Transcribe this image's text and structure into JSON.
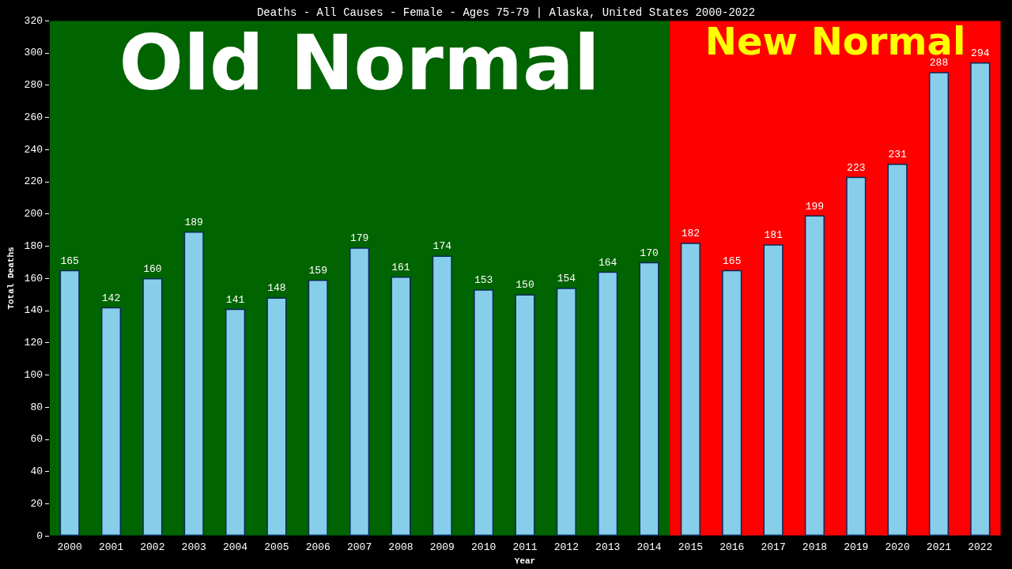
{
  "chart_data": {
    "type": "bar",
    "title": "Deaths - All Causes - Female - Ages 75-79 | Alaska, United States 2000-2022",
    "xlabel": "Year",
    "ylabel": "Total Deaths",
    "categories": [
      "2000",
      "2001",
      "2002",
      "2003",
      "2004",
      "2005",
      "2006",
      "2007",
      "2008",
      "2009",
      "2010",
      "2011",
      "2012",
      "2013",
      "2014",
      "2015",
      "2016",
      "2017",
      "2018",
      "2019",
      "2020",
      "2021",
      "2022"
    ],
    "values": [
      165,
      142,
      160,
      189,
      141,
      148,
      159,
      179,
      161,
      174,
      153,
      150,
      154,
      164,
      170,
      182,
      165,
      181,
      199,
      223,
      231,
      288,
      294
    ],
    "color": "#87ceeb",
    "ylim": [
      0,
      320
    ],
    "yticks": [
      0,
      20,
      40,
      60,
      80,
      100,
      120,
      140,
      160,
      180,
      200,
      220,
      240,
      260,
      280,
      300,
      320
    ],
    "grid": false,
    "data_labels": true,
    "bands": [
      {
        "axis": "x",
        "from": "2000",
        "to": "2014",
        "label": "Old Normal",
        "color": "#006400"
      },
      {
        "axis": "x",
        "from": "2015",
        "to": "2022",
        "label": "New Normal",
        "color": "#ff0000"
      }
    ]
  }
}
